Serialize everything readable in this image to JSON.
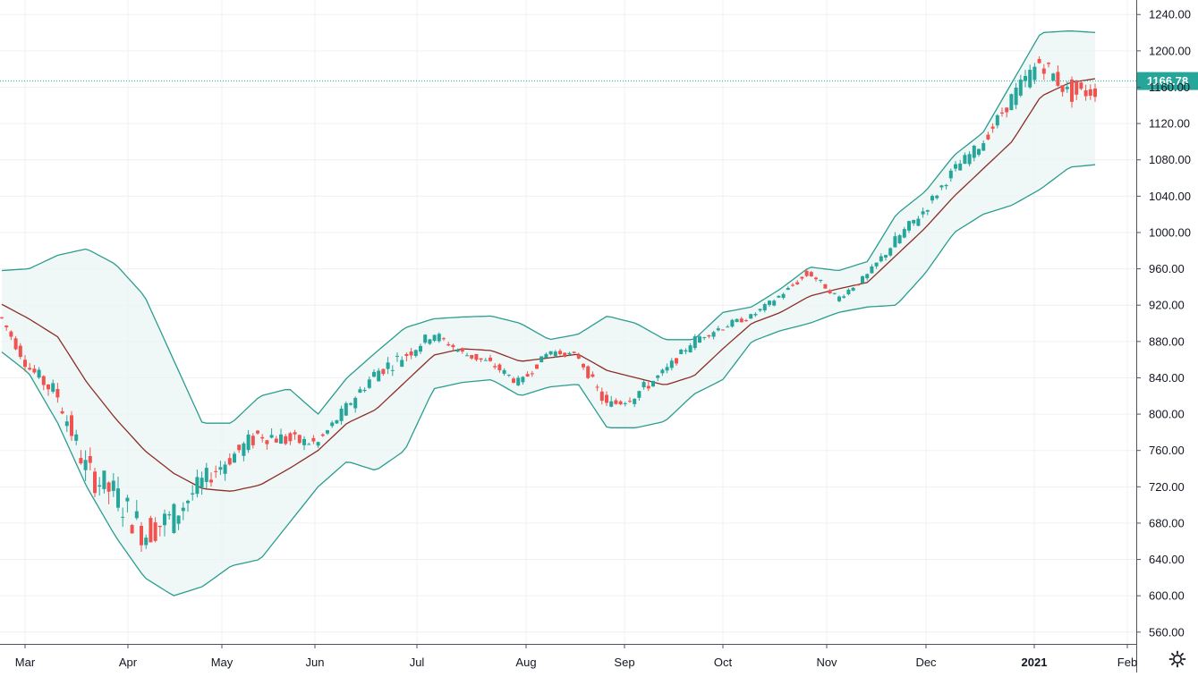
{
  "chart_data": {
    "type": "candlestick",
    "title": "",
    "x_ticks": [
      "Mar",
      "Apr",
      "May",
      "Jun",
      "Jul",
      "Aug",
      "Sep",
      "Oct",
      "Nov",
      "Dec",
      "2021",
      "Feb"
    ],
    "x_tick_bold": "2021",
    "y_ticks": [
      "1240.00",
      "1200.00",
      "1160.00",
      "1120.00",
      "1080.00",
      "1040.00",
      "1000.00",
      "960.00",
      "920.00",
      "880.00",
      "840.00",
      "800.00",
      "760.00",
      "720.00",
      "680.00",
      "640.00",
      "600.00",
      "560.00"
    ],
    "ylim": [
      547,
      1256
    ],
    "grid": true,
    "last_price": 1166.78,
    "last_price_label": "1166.78",
    "colors": {
      "up": "#26a69a",
      "down": "#ef5350",
      "band": "#2a9d8f",
      "band_fill": "#e9f4f3",
      "middle": "#8b2e26",
      "grid": "#eef0f4",
      "price_line": "#26a69a"
    },
    "anchors": [
      {
        "x": "Mar",
        "open": 915,
        "close": 905,
        "band_mid": 922,
        "band_up": 958,
        "band_low": 870
      },
      {
        "x": "Mar",
        "open": 880,
        "close": 835,
        "band_mid": 905,
        "band_up": 960,
        "band_low": 845
      },
      {
        "x": "Mar",
        "open": 840,
        "close": 810,
        "band_mid": 885,
        "band_up": 975,
        "band_low": 790
      },
      {
        "x": "Mar",
        "open": 760,
        "close": 725,
        "band_mid": 835,
        "band_up": 982,
        "band_low": 720
      },
      {
        "x": "Mar",
        "open": 730,
        "close": 700,
        "band_mid": 795,
        "band_up": 965,
        "band_low": 665
      },
      {
        "x": "Mar",
        "open": 685,
        "close": 660,
        "band_mid": 760,
        "band_up": 930,
        "band_low": 620
      },
      {
        "x": "Mar",
        "open": 665,
        "close": 700,
        "band_mid": 735,
        "band_up": 860,
        "band_low": 600
      },
      {
        "x": "Apr",
        "open": 700,
        "close": 740,
        "band_mid": 718,
        "band_up": 790,
        "band_low": 610
      },
      {
        "x": "Apr",
        "open": 740,
        "close": 760,
        "band_mid": 715,
        "band_up": 790,
        "band_low": 633
      },
      {
        "x": "Apr",
        "open": 760,
        "close": 790,
        "band_mid": 722,
        "band_up": 820,
        "band_low": 640
      },
      {
        "x": "Apr",
        "open": 790,
        "close": 760,
        "band_mid": 740,
        "band_up": 828,
        "band_low": 680
      },
      {
        "x": "May",
        "open": 765,
        "close": 770,
        "band_mid": 760,
        "band_up": 800,
        "band_low": 720
      },
      {
        "x": "May",
        "open": 770,
        "close": 830,
        "band_mid": 790,
        "band_up": 840,
        "band_low": 748
      },
      {
        "x": "May",
        "open": 830,
        "close": 855,
        "band_mid": 805,
        "band_up": 868,
        "band_low": 738
      },
      {
        "x": "May",
        "open": 855,
        "close": 870,
        "band_mid": 835,
        "band_up": 895,
        "band_low": 760
      },
      {
        "x": "Jun",
        "open": 870,
        "close": 900,
        "band_mid": 865,
        "band_up": 905,
        "band_low": 828
      },
      {
        "x": "Jun",
        "open": 880,
        "close": 860,
        "band_mid": 872,
        "band_up": 907,
        "band_low": 835
      },
      {
        "x": "Jun",
        "open": 865,
        "close": 850,
        "band_mid": 870,
        "band_up": 908,
        "band_low": 838
      },
      {
        "x": "Jul",
        "open": 840,
        "close": 830,
        "band_mid": 858,
        "band_up": 900,
        "band_low": 820
      },
      {
        "x": "Jul",
        "open": 860,
        "close": 875,
        "band_mid": 862,
        "band_up": 882,
        "band_low": 830
      },
      {
        "x": "Jul",
        "open": 870,
        "close": 860,
        "band_mid": 866,
        "band_up": 888,
        "band_low": 833
      },
      {
        "x": "Aug",
        "open": 840,
        "close": 790,
        "band_mid": 848,
        "band_up": 908,
        "band_low": 785
      },
      {
        "x": "Aug",
        "open": 800,
        "close": 835,
        "band_mid": 840,
        "band_up": 900,
        "band_low": 785
      },
      {
        "x": "Aug",
        "open": 840,
        "close": 850,
        "band_mid": 832,
        "band_up": 882,
        "band_low": 792
      },
      {
        "x": "Sep",
        "open": 850,
        "close": 900,
        "band_mid": 842,
        "band_up": 882,
        "band_low": 822
      },
      {
        "x": "Sep",
        "open": 890,
        "close": 900,
        "band_mid": 872,
        "band_up": 912,
        "band_low": 838
      },
      {
        "x": "Oct",
        "open": 900,
        "close": 912,
        "band_mid": 900,
        "band_up": 918,
        "band_low": 880
      },
      {
        "x": "Oct",
        "open": 915,
        "close": 940,
        "band_mid": 912,
        "band_up": 938,
        "band_low": 892
      },
      {
        "x": "Nov",
        "open": 965,
        "close": 950,
        "band_mid": 930,
        "band_up": 962,
        "band_low": 900
      },
      {
        "x": "Nov",
        "open": 915,
        "close": 935,
        "band_mid": 938,
        "band_up": 958,
        "band_low": 912
      },
      {
        "x": "Nov",
        "open": 940,
        "close": 960,
        "band_mid": 945,
        "band_up": 968,
        "band_low": 918
      },
      {
        "x": "Dec",
        "open": 960,
        "close": 1010,
        "band_mid": 975,
        "band_up": 1020,
        "band_low": 920
      },
      {
        "x": "Dec",
        "open": 1000,
        "close": 1040,
        "band_mid": 1005,
        "band_up": 1045,
        "band_low": 955
      },
      {
        "x": "Dec",
        "open": 1050,
        "close": 1080,
        "band_mid": 1040,
        "band_up": 1085,
        "band_low": 1000
      },
      {
        "x": "Dec",
        "open": 1080,
        "close": 1110,
        "band_mid": 1070,
        "band_up": 1110,
        "band_low": 1020
      },
      {
        "x": "2021",
        "open": 1110,
        "close": 1170,
        "band_mid": 1100,
        "band_up": 1165,
        "band_low": 1030
      },
      {
        "x": "2021",
        "open": 1170,
        "close": 1200,
        "band_mid": 1150,
        "band_up": 1220,
        "band_low": 1048
      },
      {
        "x": "2021",
        "open": 1190,
        "close": 1130,
        "band_mid": 1165,
        "band_up": 1222,
        "band_low": 1072
      },
      {
        "x": "2021",
        "open": 1140,
        "close": 1166.78,
        "band_mid": 1170,
        "band_up": 1220,
        "band_low": 1075
      }
    ]
  },
  "ui": {
    "settings_icon": "gear-icon"
  }
}
